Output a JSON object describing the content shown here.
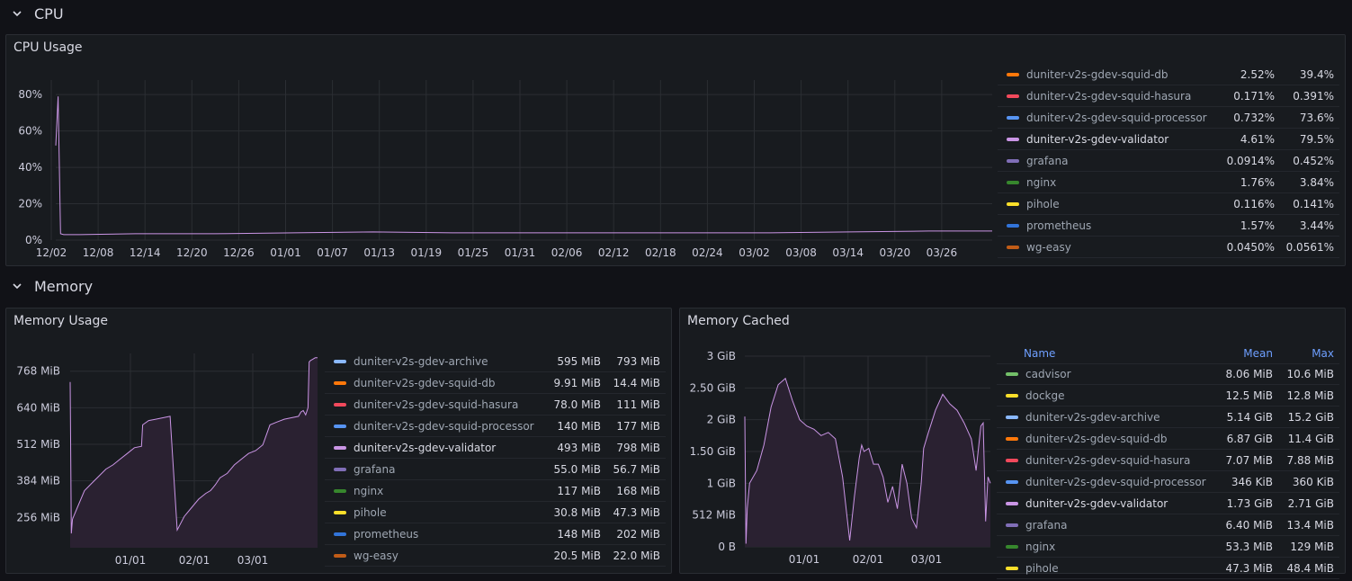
{
  "rows": {
    "cpu": "CPU",
    "memory": "Memory"
  },
  "colors": {
    "line": "#ca95e5",
    "fill": "#2a2131",
    "grid": "#2b2e33",
    "axis_text": "#ccccdc"
  },
  "cpu_panel": {
    "title": "CPU Usage",
    "legend": [
      {
        "name": "duniter-v2s-gdev-squid-db",
        "color": "#ff780a",
        "mean": "2.52%",
        "max": "39.4%"
      },
      {
        "name": "duniter-v2s-gdev-squid-hasura",
        "color": "#f2495c",
        "mean": "0.171%",
        "max": "0.391%"
      },
      {
        "name": "duniter-v2s-gdev-squid-processor",
        "color": "#5794f2",
        "mean": "0.732%",
        "max": "73.6%"
      },
      {
        "name": "duniter-v2s-gdev-validator",
        "color": "#ca95e5",
        "mean": "4.61%",
        "max": "79.5%",
        "highlight": true
      },
      {
        "name": "grafana",
        "color": "#806eb7",
        "mean": "0.0914%",
        "max": "0.452%"
      },
      {
        "name": "nginx",
        "color": "#37872d",
        "mean": "1.76%",
        "max": "3.84%"
      },
      {
        "name": "pihole",
        "color": "#fade2a",
        "mean": "0.116%",
        "max": "0.141%"
      },
      {
        "name": "prometheus",
        "color": "#3274d9",
        "mean": "1.57%",
        "max": "3.44%"
      },
      {
        "name": "wg-easy",
        "color": "#c15c17",
        "mean": "0.0450%",
        "max": "0.0561%"
      }
    ]
  },
  "memory_usage_panel": {
    "title": "Memory Usage",
    "partial_top_label": "...",
    "legend": [
      {
        "name": "duniter-v2s-gdev-archive",
        "color": "#8ab8ff",
        "mean": "595 MiB",
        "max": "793 MiB"
      },
      {
        "name": "duniter-v2s-gdev-squid-db",
        "color": "#ff780a",
        "mean": "9.91 MiB",
        "max": "14.4 MiB"
      },
      {
        "name": "duniter-v2s-gdev-squid-hasura",
        "color": "#f2495c",
        "mean": "78.0 MiB",
        "max": "111 MiB"
      },
      {
        "name": "duniter-v2s-gdev-squid-processor",
        "color": "#5794f2",
        "mean": "140 MiB",
        "max": "177 MiB"
      },
      {
        "name": "duniter-v2s-gdev-validator",
        "color": "#ca95e5",
        "mean": "493 MiB",
        "max": "798 MiB",
        "highlight": true
      },
      {
        "name": "grafana",
        "color": "#806eb7",
        "mean": "55.0 MiB",
        "max": "56.7 MiB"
      },
      {
        "name": "nginx",
        "color": "#37872d",
        "mean": "117 MiB",
        "max": "168 MiB"
      },
      {
        "name": "pihole",
        "color": "#fade2a",
        "mean": "30.8 MiB",
        "max": "47.3 MiB"
      },
      {
        "name": "prometheus",
        "color": "#3274d9",
        "mean": "148 MiB",
        "max": "202 MiB"
      },
      {
        "name": "wg-easy",
        "color": "#c15c17",
        "mean": "20.5 MiB",
        "max": "22.0 MiB"
      }
    ]
  },
  "memory_cached_panel": {
    "title": "Memory Cached",
    "legend_header": {
      "name": "Name",
      "mean": "Mean",
      "max": "Max"
    },
    "legend": [
      {
        "name": "cadvisor",
        "color": "#73bf69",
        "mean": "8.06 MiB",
        "max": "10.6 MiB"
      },
      {
        "name": "dockge",
        "color": "#fade2a",
        "mean": "12.5 MiB",
        "max": "12.8 MiB"
      },
      {
        "name": "duniter-v2s-gdev-archive",
        "color": "#8ab8ff",
        "mean": "5.14 GiB",
        "max": "15.2 GiB"
      },
      {
        "name": "duniter-v2s-gdev-squid-db",
        "color": "#ff780a",
        "mean": "6.87 GiB",
        "max": "11.4 GiB"
      },
      {
        "name": "duniter-v2s-gdev-squid-hasura",
        "color": "#f2495c",
        "mean": "7.07 MiB",
        "max": "7.88 MiB"
      },
      {
        "name": "duniter-v2s-gdev-squid-processor",
        "color": "#5794f2",
        "mean": "346 KiB",
        "max": "360 KiB"
      },
      {
        "name": "duniter-v2s-gdev-validator",
        "color": "#ca95e5",
        "mean": "1.73 GiB",
        "max": "2.71 GiB",
        "highlight": true
      },
      {
        "name": "grafana",
        "color": "#806eb7",
        "mean": "6.40 MiB",
        "max": "13.4 MiB"
      },
      {
        "name": "nginx",
        "color": "#37872d",
        "mean": "53.3 MiB",
        "max": "129 MiB"
      },
      {
        "name": "pihole",
        "color": "#fade2a",
        "mean": "47.3 MiB",
        "max": "48.4 MiB"
      }
    ]
  },
  "chart_data": [
    {
      "type": "line",
      "title": "CPU Usage",
      "y_ticks": [
        "0%",
        "20%",
        "40%",
        "60%",
        "80%"
      ],
      "ylim": [
        0,
        90
      ],
      "x_ticks": [
        "12/02",
        "12/08",
        "12/14",
        "12/20",
        "12/26",
        "01/01",
        "01/07",
        "01/13",
        "01/19",
        "01/25",
        "01/31",
        "02/06",
        "02/12",
        "02/18",
        "02/24",
        "03/02",
        "03/08",
        "03/14",
        "03/20",
        "03/26"
      ],
      "series": [
        {
          "name": "duniter-v2s-gdev-validator",
          "color": "#ca95e5",
          "x": [
            0,
            0.3,
            0.6,
            1,
            3,
            10,
            20,
            30,
            40,
            50,
            60,
            70,
            80,
            90,
            100,
            110,
            118
          ],
          "y": [
            52,
            79,
            3.5,
            3,
            3,
            3.5,
            3.5,
            4,
            4.5,
            4,
            4,
            4,
            4,
            4,
            4.5,
            5,
            5
          ]
        }
      ]
    },
    {
      "type": "area",
      "title": "Memory Usage",
      "y_ticks": [
        "256 MiB",
        "384 MiB",
        "512 MiB",
        "640 MiB",
        "768 MiB"
      ],
      "ylim": [
        150,
        830
      ],
      "x_ticks": [
        "01/01",
        "02/01",
        "03/01"
      ],
      "series": [
        {
          "name": "duniter-v2s-gdev-validator",
          "color": "#ca95e5",
          "x": [
            0,
            0.5,
            1,
            3,
            6,
            9,
            12,
            15,
            18,
            21,
            24,
            27,
            30,
            30.5,
            33,
            36,
            39,
            42,
            45,
            48,
            51,
            54,
            57,
            59,
            60,
            61,
            63,
            66,
            69,
            72,
            75,
            78,
            81,
            84,
            87,
            90,
            93,
            96,
            97,
            98,
            99,
            100,
            100.5,
            101,
            102,
            103,
            104
          ],
          "y": [
            730,
            200,
            250,
            290,
            350,
            375,
            400,
            425,
            440,
            460,
            480,
            500,
            505,
            580,
            595,
            600,
            605,
            610,
            212,
            260,
            290,
            320,
            340,
            350,
            360,
            370,
            395,
            410,
            440,
            460,
            480,
            490,
            510,
            580,
            590,
            600,
            605,
            610,
            625,
            630,
            615,
            640,
            800,
            805,
            810,
            815,
            815
          ]
        }
      ]
    },
    {
      "type": "area",
      "title": "Memory Cached",
      "y_ticks": [
        "0 B",
        "512 MiB",
        "1 GiB",
        "1.50 GiB",
        "2 GiB",
        "2.50 GiB",
        "3 GiB"
      ],
      "ylim_gib": [
        0,
        3
      ],
      "x_ticks": [
        "01/01",
        "02/01",
        "03/01"
      ],
      "series": [
        {
          "name": "duniter-v2s-gdev-validator",
          "color": "#ca95e5",
          "x": [
            0,
            0.5,
            1,
            2,
            5,
            8,
            11,
            14,
            17,
            20,
            23,
            26,
            29,
            32,
            35,
            38,
            41,
            44,
            46,
            48,
            49,
            50,
            52,
            54,
            56,
            58,
            60,
            62,
            64,
            66,
            68,
            70,
            72,
            74,
            75,
            77,
            80,
            83,
            86,
            89,
            92,
            95,
            97,
            99,
            100,
            101,
            102,
            103
          ],
          "y": [
            2.05,
            0.05,
            0.6,
            1.0,
            1.2,
            1.6,
            2.2,
            2.55,
            2.65,
            2.3,
            2.0,
            1.9,
            1.85,
            1.75,
            1.8,
            1.7,
            1.1,
            0.1,
            0.8,
            1.4,
            1.6,
            1.5,
            1.55,
            1.3,
            1.3,
            1.1,
            0.7,
            0.95,
            0.6,
            1.3,
            1.0,
            0.45,
            0.3,
            1.0,
            1.55,
            1.8,
            2.15,
            2.4,
            2.25,
            2.15,
            1.95,
            1.7,
            1.2,
            1.9,
            1.95,
            0.4,
            1.1,
            1.0
          ]
        }
      ]
    }
  ]
}
